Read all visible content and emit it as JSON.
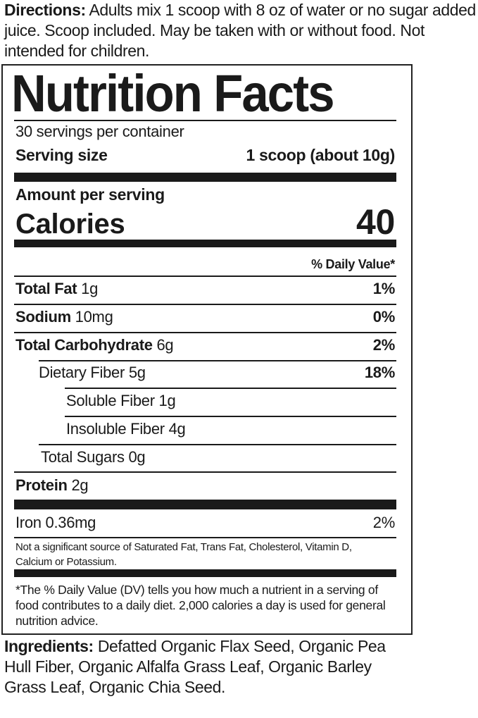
{
  "directions": {
    "label": "Directions:",
    "text": " Adults mix 1 scoop with 8 oz of water or no sugar added juice. Scoop included. May be taken with or without food. Not intended for children."
  },
  "label": {
    "title": "Nutrition Facts",
    "servings": "30 servings per container",
    "serving_size_label": "Serving size",
    "serving_size_value": "1 scoop (about 10g)",
    "amount_per_serving": "Amount per serving",
    "calories_label": "Calories",
    "calories_value": "40",
    "dv_header": "% Daily Value*",
    "nutrients": [
      {
        "name": "Total Fat",
        "amount": " 1g",
        "dv": "1%"
      },
      {
        "name": "Sodium",
        "amount": " 10mg",
        "dv": "0%"
      },
      {
        "name": "Total Carbohydrate",
        "amount": " 6g",
        "dv": "2%"
      },
      {
        "name": "Dietary Fiber 5g",
        "dv": "18%"
      },
      {
        "name": "Soluble Fiber 1g"
      },
      {
        "name": "Insoluble Fiber 4g"
      },
      {
        "name": "Total Sugars 0g"
      },
      {
        "name": "Protein",
        "amount": " 2g"
      }
    ],
    "iron": {
      "name": "Iron 0.36mg",
      "dv": "2%"
    },
    "note": "Not a significant source of Saturated Fat, Trans Fat, Cholesterol, Vitamin D, Calcium or Potassium.",
    "footnote": "*The % Daily Value (DV) tells you how much a nutrient in a serving of food contributes to a daily diet. 2,000 calories a day is used for general nutrition advice."
  },
  "ingredients": {
    "label": "Ingredients:",
    "text": " Defatted Organic Flax Seed, Organic Pea Hull Fiber, Organic Alfalfa Grass Leaf, Organic Barley Grass Leaf, Organic Chia Seed."
  }
}
